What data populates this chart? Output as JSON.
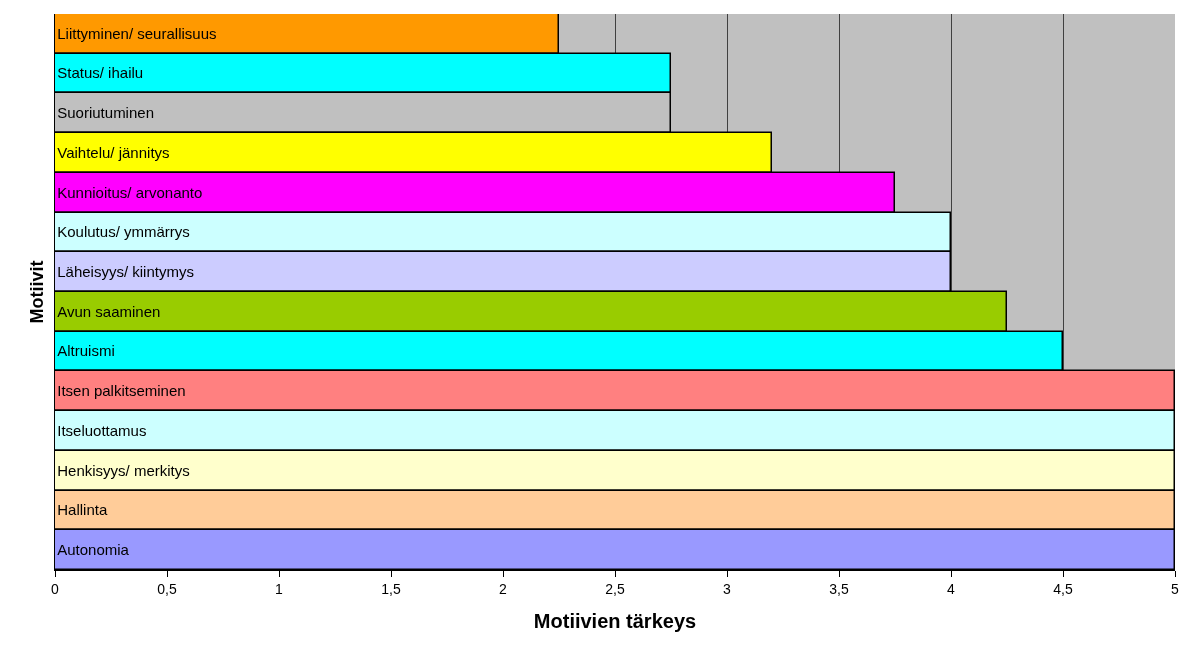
{
  "chart_data": {
    "type": "bar",
    "orientation": "horizontal",
    "xlabel": "Motiivien tärkeys",
    "ylabel": "Motiivit",
    "categories": [
      "Liittyminen/ seurallisuus",
      "Status/ ihailu",
      "Suoriutuminen",
      "Vaihtelu/ jännitys",
      "Kunnioitus/ arvonanto",
      "Koulutus/ ymmärrys",
      "Läheisyys/ kiintymys",
      "Avun saaminen",
      "Altruismi",
      "Itsen palkitseminen",
      "Itseluottamus",
      "Henkisyys/ merkitys",
      "Hallinta",
      "Autonomia"
    ],
    "values": [
      2.25,
      2.75,
      2.75,
      3.2,
      3.75,
      4,
      4,
      4.25,
      4.5,
      5,
      5,
      5,
      5,
      5
    ],
    "colors": [
      "#ff9900",
      "#00ffff",
      "#c0c0c0",
      "#ffff00",
      "#ff00ff",
      "#ccffff",
      "#ccccff",
      "#99cc00",
      "#00ffff",
      "#ff8080",
      "#ccffff",
      "#ffffcc",
      "#ffcc99",
      "#9999ff"
    ],
    "xlim": [
      0,
      5
    ],
    "xticks": [
      0,
      {
        "value": 0.5,
        "label": "0,5"
      },
      1,
      {
        "value": 1.5,
        "label": "1,5"
      },
      2,
      {
        "value": 2.5,
        "label": "2,5"
      },
      3,
      {
        "value": 3.5,
        "label": "3,5"
      },
      4,
      {
        "value": 4.5,
        "label": "4,5"
      },
      5
    ],
    "grid": "x",
    "tick_labels": "x"
  }
}
